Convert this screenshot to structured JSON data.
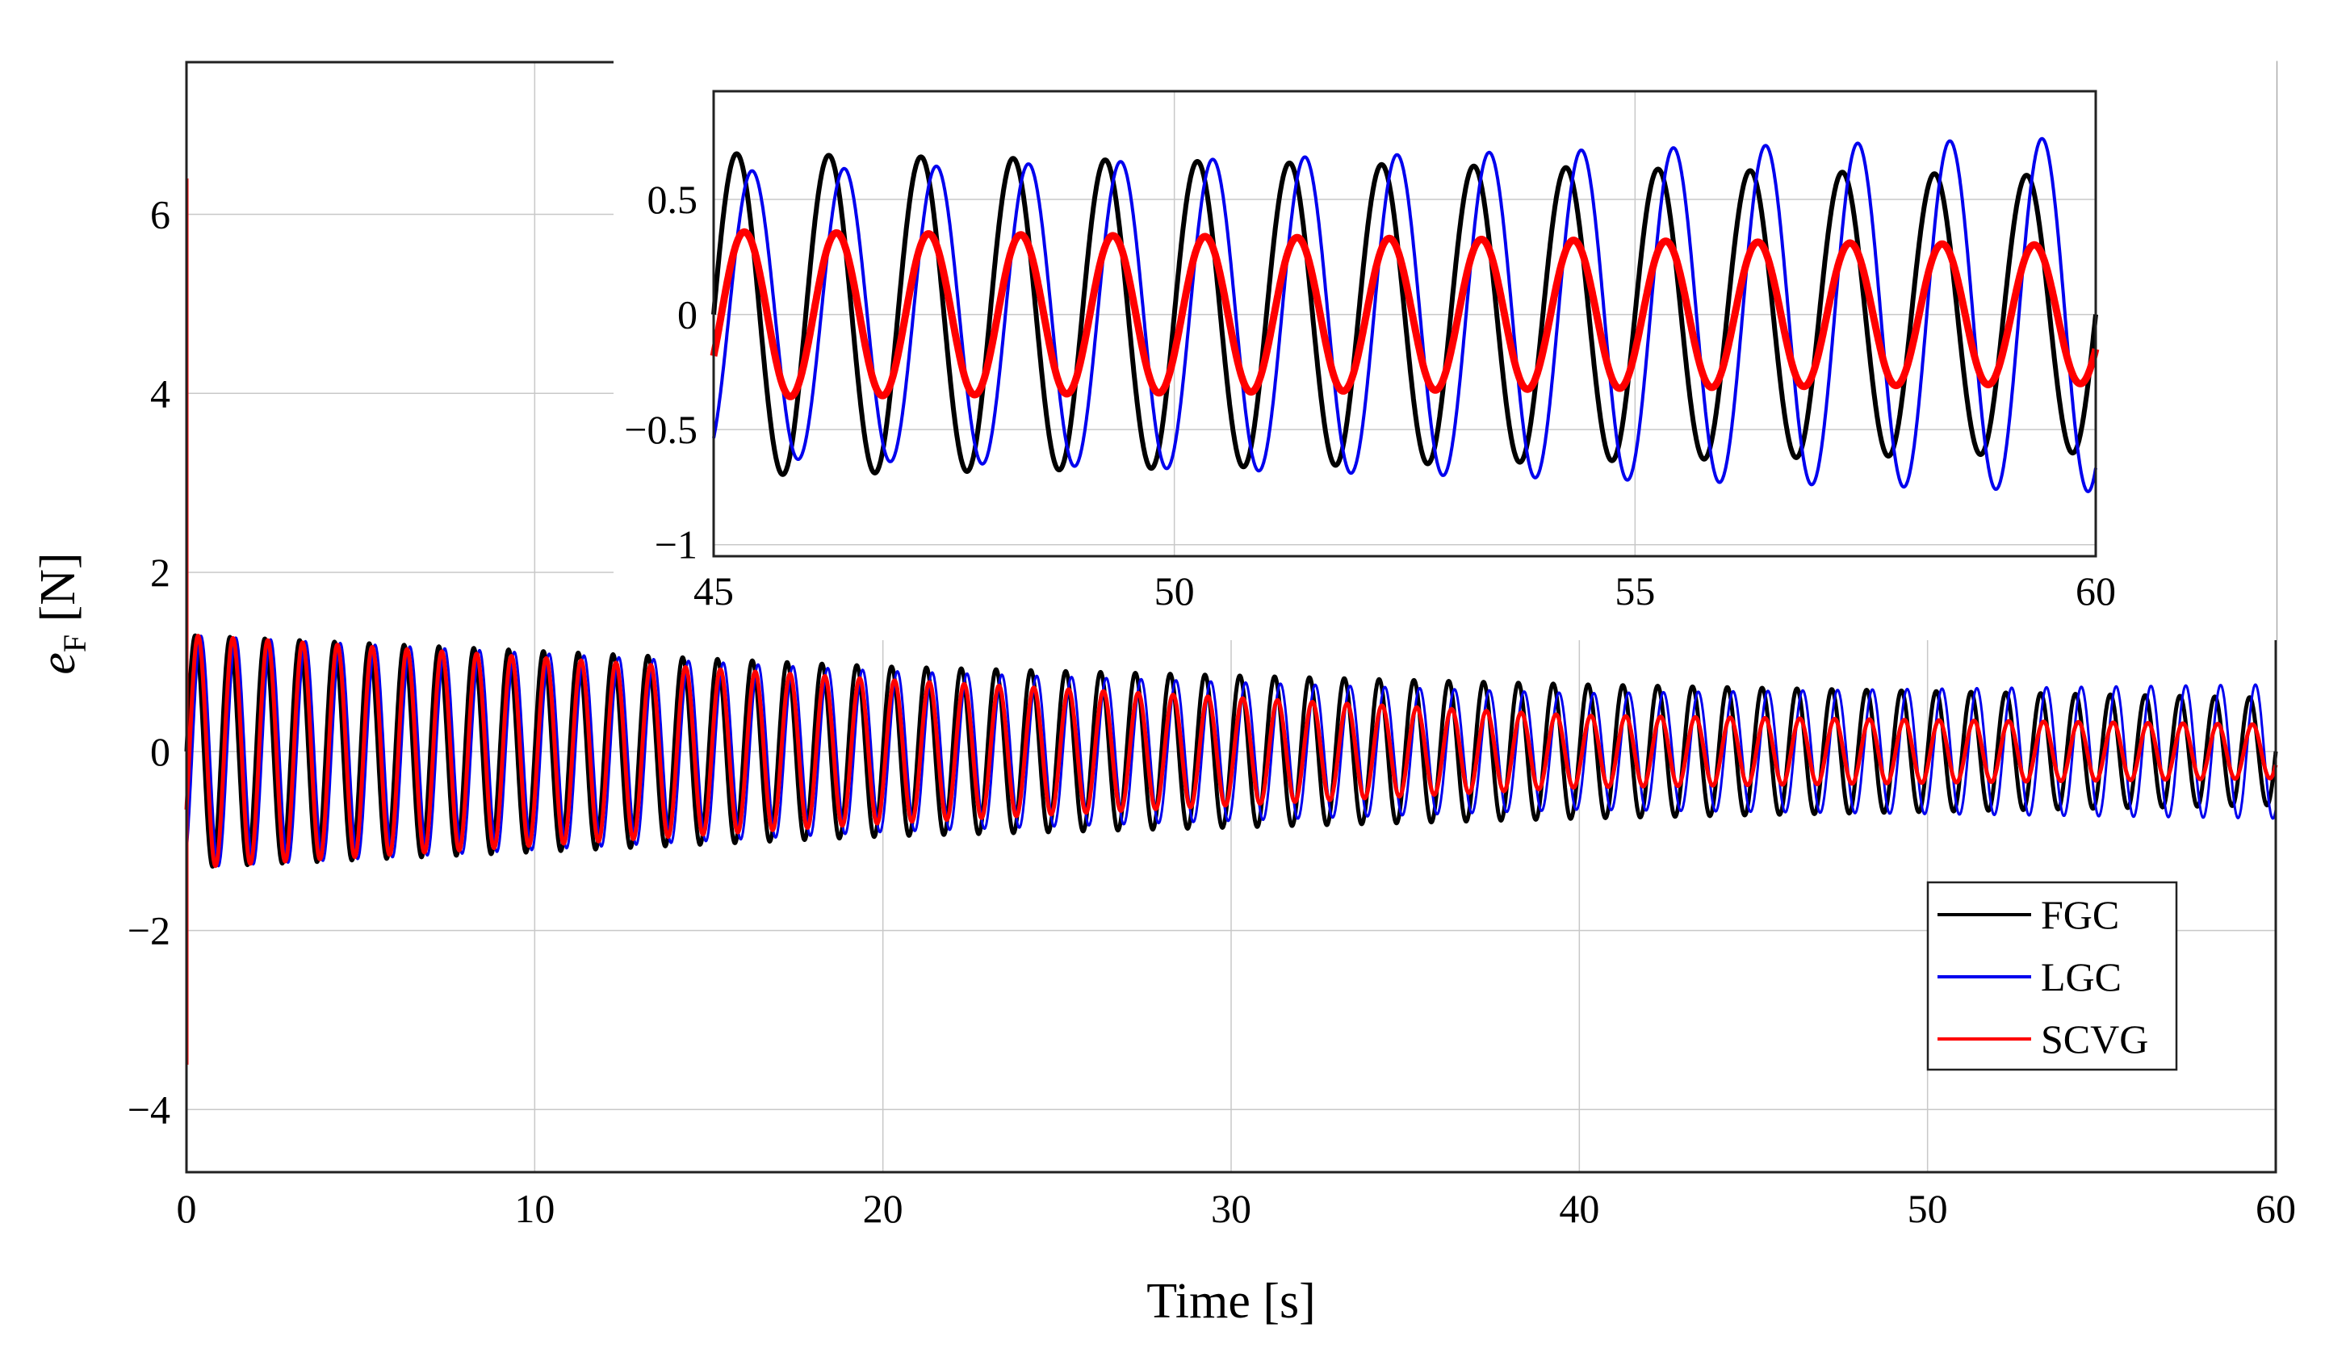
{
  "chart_data": [
    {
      "name": "main",
      "type": "line",
      "title": "",
      "xlabel": "Time [s]",
      "ylabel_main": "e",
      "ylabel_sub": "F",
      "ylabel_unit": "[N]",
      "xlim": [
        0,
        60
      ],
      "ylim": [
        -4.7,
        7.7
      ],
      "xticks": [
        0,
        10,
        20,
        30,
        40,
        50,
        60
      ],
      "xtick_labels": [
        "0",
        "10",
        "20",
        "30",
        "40",
        "50",
        "60"
      ],
      "yticks": [
        -4,
        -2,
        0,
        2,
        4,
        6
      ],
      "ytick_labels": [
        "−4",
        "−2",
        "0",
        "2",
        "4",
        "6"
      ],
      "grid": true,
      "legend_position": "bottom-right",
      "initial_transient": {
        "t0": 0.0,
        "min": -3.5,
        "max": 6.4
      },
      "series": [
        {
          "name": "FGC",
          "color": "#000000",
          "frequency_hz": 1.0,
          "phase_deg": 0,
          "amplitude_t": [
            0,
            20,
            40,
            60
          ],
          "amplitude": [
            1.3,
            0.95,
            0.75,
            0.6
          ]
        },
        {
          "name": "LGC",
          "color": "#0000ee",
          "frequency_hz": 1.0,
          "phase_deg": 60,
          "amplitude_t": [
            0,
            20,
            40,
            60
          ],
          "amplitude": [
            1.3,
            0.9,
            0.65,
            0.75
          ]
        },
        {
          "name": "SCVG",
          "color": "#ff0000",
          "frequency_hz": 1.0,
          "phase_deg": 30,
          "amplitude_t": [
            0,
            20,
            40,
            60
          ],
          "amplitude": [
            1.3,
            0.8,
            0.4,
            0.3
          ]
        }
      ]
    },
    {
      "name": "inset",
      "type": "line",
      "xlim": [
        45,
        60
      ],
      "ylim": [
        -1.05,
        0.97
      ],
      "xticks": [
        45,
        50,
        55,
        60
      ],
      "xtick_labels": [
        "45",
        "50",
        "55",
        "60"
      ],
      "yticks": [
        -1,
        -0.5,
        0,
        0.5
      ],
      "ytick_labels": [
        "−1",
        "−0.5",
        "0",
        "0.5"
      ],
      "grid": true,
      "series": [
        {
          "name": "FGC",
          "color": "#000000",
          "frequency_hz": 1.0,
          "phase_deg": 0,
          "amplitude_t": [
            45,
            60
          ],
          "amplitude": [
            0.7,
            0.6
          ]
        },
        {
          "name": "LGC",
          "color": "#0000ee",
          "frequency_hz": 1.0,
          "phase_deg": 60,
          "amplitude_t": [
            45,
            60
          ],
          "amplitude": [
            0.62,
            0.77
          ]
        },
        {
          "name": "SCVG",
          "color": "#ff0000",
          "frequency_hz": 1.0,
          "phase_deg": 30,
          "amplitude_t": [
            45,
            60
          ],
          "amplitude": [
            0.36,
            0.3
          ]
        }
      ]
    }
  ]
}
